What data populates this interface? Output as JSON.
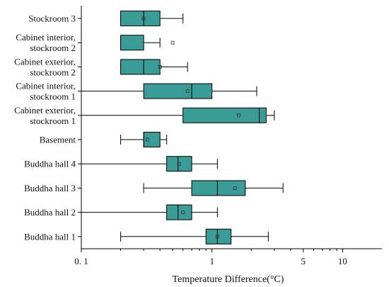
{
  "chart_data": {
    "type": "box",
    "orientation": "horizontal",
    "xscale": "log",
    "xlim": [
      0.1,
      20
    ],
    "xticks": [
      0.1,
      1,
      5,
      10
    ],
    "xtick_labels": [
      "0. 1",
      "1",
      "5",
      "10"
    ],
    "xlabel": "Temperature Difference(°C)",
    "box_color": "#3a9c96",
    "grid": false,
    "categories": [
      [
        "Stockroom 3"
      ],
      [
        "Cabinet interior,",
        "stockroom 2"
      ],
      [
        "Cabinet exterior,",
        "stockroom 2"
      ],
      [
        "Cabinet interior,",
        "stockroom 1"
      ],
      [
        "Cabinet exterior,",
        "stockroom 1"
      ],
      [
        "Basement"
      ],
      [
        "Buddha hall 4"
      ],
      [
        "Buddha hall 3"
      ],
      [
        "Buddha hall 2"
      ],
      [
        "Buddha hall 1"
      ]
    ],
    "boxes": [
      {
        "whisker_low": 0.2,
        "q1": 0.2,
        "median": 0.3,
        "q3": 0.4,
        "whisker_high": 0.6,
        "mean": 0.3
      },
      {
        "whisker_low": 0.2,
        "q1": 0.2,
        "median": 0.2,
        "q3": 0.3,
        "whisker_high": 0.4,
        "mean": 0.5
      },
      {
        "whisker_low": 0.2,
        "q1": 0.2,
        "median": 0.3,
        "q3": 0.4,
        "whisker_high": 0.65,
        "mean": 0.4
      },
      {
        "whisker_low": 0.1,
        "q1": 0.3,
        "median": 0.7,
        "q3": 1.0,
        "whisker_high": 2.2,
        "mean": 0.65
      },
      {
        "whisker_low": 0.1,
        "q1": 0.6,
        "median": 2.3,
        "q3": 2.6,
        "whisker_high": 3.0,
        "mean": 1.6
      },
      {
        "whisker_low": 0.2,
        "q1": 0.3,
        "median": 0.3,
        "q3": 0.4,
        "whisker_high": 0.45,
        "mean": 0.32
      },
      {
        "whisker_low": 0.1,
        "q1": 0.45,
        "median": 0.55,
        "q3": 0.7,
        "whisker_high": 1.1,
        "mean": 0.56
      },
      {
        "whisker_low": 0.3,
        "q1": 0.7,
        "median": 1.1,
        "q3": 1.8,
        "whisker_high": 3.5,
        "mean": 1.5
      },
      {
        "whisker_low": 0.1,
        "q1": 0.45,
        "median": 0.55,
        "q3": 0.7,
        "whisker_high": 1.1,
        "mean": 0.6
      },
      {
        "whisker_low": 0.2,
        "q1": 0.9,
        "median": 1.1,
        "q3": 1.4,
        "whisker_high": 2.7,
        "mean": 1.1
      }
    ]
  }
}
